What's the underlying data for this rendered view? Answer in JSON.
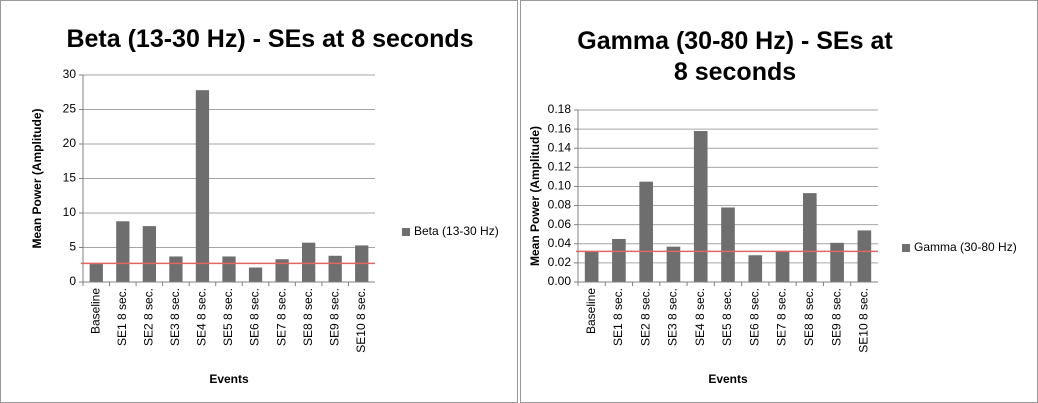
{
  "chart_data": [
    {
      "type": "bar",
      "title": "Beta (13-30 Hz) - SEs at 8 seconds",
      "y_label": "Mean Power (Amplitude)",
      "x_label": "Events",
      "categories": [
        "Baseline",
        "SE1 8 sec.",
        "SE2 8 sec.",
        "SE3 8 sec.",
        "SE4 8 sec.",
        "SE5 8 sec.",
        "SE6 8 sec.",
        "SE7 8 sec.",
        "SE8 8 sec.",
        "SE9 8 sec.",
        "SE10 8 sec."
      ],
      "series": [
        {
          "name": "Beta (13-30 Hz)",
          "color": "#6e6e6e",
          "values": [
            2.6,
            8.8,
            8.1,
            3.7,
            27.8,
            3.7,
            2.1,
            3.3,
            5.7,
            3.8,
            5.3
          ]
        }
      ],
      "reference_line": {
        "value": 2.7,
        "color": "#e06666"
      },
      "ylim": [
        0,
        30
      ],
      "yticks": [
        0,
        5,
        10,
        15,
        20,
        25,
        30
      ],
      "legend": "right"
    },
    {
      "type": "bar",
      "title": "Gamma (30-80 Hz) - SEs at 8 seconds",
      "y_label": "Mean Power (Amplitude)",
      "x_label": "Events",
      "categories": [
        "Baseline",
        "SE1 8 sec.",
        "SE2 8 sec.",
        "SE3 8 sec.",
        "SE4 8 sec.",
        "SE5 8 sec.",
        "SE6 8 sec.",
        "SE7 8 sec.",
        "SE8 8 sec.",
        "SE9 8 sec.",
        "SE10 8 sec."
      ],
      "series": [
        {
          "name": "Gamma (30-80 Hz)",
          "color": "#6e6e6e",
          "values": [
            0.032,
            0.045,
            0.105,
            0.037,
            0.158,
            0.078,
            0.028,
            0.032,
            0.093,
            0.041,
            0.054
          ]
        }
      ],
      "reference_line": {
        "value": 0.032,
        "color": "#e06666"
      },
      "ylim": [
        0,
        0.18
      ],
      "yticks": [
        {
          "value": 0,
          "label": "0.00"
        },
        0.02,
        0.04,
        0.06,
        0.08,
        {
          "value": 0.1,
          "label": "0.10"
        },
        0.12,
        0.14,
        0.16,
        0.18
      ],
      "legend": "right"
    }
  ]
}
